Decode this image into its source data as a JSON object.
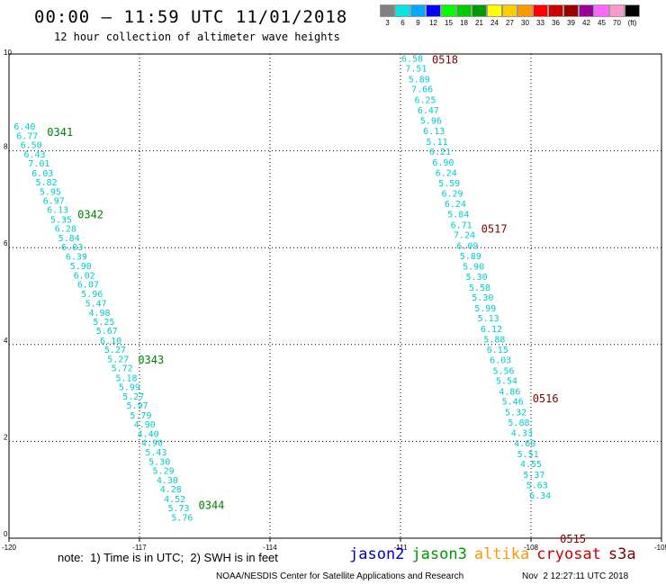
{
  "header": {
    "title": "00:00 – 11:59 UTC 11/01/2018",
    "subtitle": "12 hour collection of altimeter wave heights"
  },
  "colorbar": {
    "colors": [
      "#808080",
      "#00e6e6",
      "#00aaff",
      "#0000ff",
      "#00ff00",
      "#00cc00",
      "#009900",
      "#ffff00",
      "#ffcc00",
      "#ff9900",
      "#ff0000",
      "#cc0000",
      "#990000",
      "#990099",
      "#ff66ff",
      "#ff99cc",
      "#000000"
    ],
    "labels": [
      "3",
      "6",
      "9",
      "12",
      "15",
      "18",
      "21",
      "24",
      "27",
      "30",
      "33",
      "36",
      "39",
      "42",
      "45",
      "70",
      "(ft)"
    ]
  },
  "chart_data": {
    "type": "scatter",
    "title": "00:00 – 11:59 UTC 11/01/2018",
    "subtitle": "12 hour collection of altimeter wave heights",
    "xlim": [
      -120,
      -105
    ],
    "ylim": [
      0,
      10
    ],
    "x_ticks": [
      "-120",
      "-117",
      "-114",
      "-111",
      "-108",
      "-105"
    ],
    "y_ticks": [
      "0",
      "2",
      "4",
      "6",
      "8",
      "10"
    ],
    "grid": true,
    "colors": {
      "jason3": "#008000",
      "cryosat": "#800000",
      "point": "#00cccc"
    },
    "tracks": [
      {
        "satellite": "jason3",
        "times": [
          {
            "label": "0341",
            "lat": 8.4
          },
          {
            "label": "0342",
            "lat": 6.7
          },
          {
            "label": "0343",
            "lat": 3.7
          },
          {
            "label": "0344",
            "lat": 0.7
          }
        ],
        "points": [
          {
            "lon": -119.64,
            "lat": 8.51,
            "swh": 6.4
          },
          {
            "lon": -119.58,
            "lat": 8.32,
            "swh": 6.77
          },
          {
            "lon": -119.49,
            "lat": 8.13,
            "swh": 6.5
          },
          {
            "lon": -119.41,
            "lat": 7.94,
            "swh": 6.43
          },
          {
            "lon": -119.31,
            "lat": 7.75,
            "swh": 7.01
          },
          {
            "lon": -119.23,
            "lat": 7.55,
            "swh": 6.03
          },
          {
            "lon": -119.14,
            "lat": 7.36,
            "swh": 5.82
          },
          {
            "lon": -119.05,
            "lat": 7.17,
            "swh": 5.95
          },
          {
            "lon": -118.97,
            "lat": 6.98,
            "swh": 6.97
          },
          {
            "lon": -118.88,
            "lat": 6.79,
            "swh": 6.13
          },
          {
            "lon": -118.8,
            "lat": 6.59,
            "swh": 5.35
          },
          {
            "lon": -118.7,
            "lat": 6.4,
            "swh": 6.28
          },
          {
            "lon": -118.62,
            "lat": 6.21,
            "swh": 5.84
          },
          {
            "lon": -118.55,
            "lat": 6.02,
            "swh": 6.03
          },
          {
            "lon": -118.45,
            "lat": 5.83,
            "swh": 6.39
          },
          {
            "lon": -118.35,
            "lat": 5.63,
            "swh": 5.9
          },
          {
            "lon": -118.27,
            "lat": 5.44,
            "swh": 6.02
          },
          {
            "lon": -118.18,
            "lat": 5.25,
            "swh": 6.07
          },
          {
            "lon": -118.09,
            "lat": 5.06,
            "swh": 5.96
          },
          {
            "lon": -118.0,
            "lat": 4.86,
            "swh": 5.47
          },
          {
            "lon": -117.92,
            "lat": 4.67,
            "swh": 4.98
          },
          {
            "lon": -117.82,
            "lat": 4.48,
            "swh": 5.25
          },
          {
            "lon": -117.75,
            "lat": 4.29,
            "swh": 5.67
          },
          {
            "lon": -117.66,
            "lat": 4.09,
            "swh": 6.1
          },
          {
            "lon": -117.56,
            "lat": 3.9,
            "swh": 5.27
          },
          {
            "lon": -117.49,
            "lat": 3.71,
            "swh": 5.27
          },
          {
            "lon": -117.4,
            "lat": 3.52,
            "swh": 5.72
          },
          {
            "lon": -117.3,
            "lat": 3.32,
            "swh": 5.18
          },
          {
            "lon": -117.23,
            "lat": 3.13,
            "swh": 5.99
          },
          {
            "lon": -117.14,
            "lat": 2.94,
            "swh": 5.27
          },
          {
            "lon": -117.05,
            "lat": 2.75,
            "swh": 5.97
          },
          {
            "lon": -116.97,
            "lat": 2.55,
            "swh": 5.79
          },
          {
            "lon": -116.88,
            "lat": 2.36,
            "swh": 4.9
          },
          {
            "lon": -116.8,
            "lat": 2.17,
            "swh": 4.4
          },
          {
            "lon": -116.71,
            "lat": 1.98,
            "swh": 4.9
          },
          {
            "lon": -116.62,
            "lat": 1.78,
            "swh": 5.43
          },
          {
            "lon": -116.54,
            "lat": 1.59,
            "swh": 5.3
          },
          {
            "lon": -116.45,
            "lat": 1.4,
            "swh": 5.29
          },
          {
            "lon": -116.36,
            "lat": 1.21,
            "swh": 4.3
          },
          {
            "lon": -116.28,
            "lat": 1.02,
            "swh": 4.28
          },
          {
            "lon": -116.19,
            "lat": 0.82,
            "swh": 4.52
          },
          {
            "lon": -116.1,
            "lat": 0.63,
            "swh": 5.73
          },
          {
            "lon": -116.02,
            "lat": 0.44,
            "swh": 5.76
          }
        ]
      },
      {
        "satellite": "cryosat",
        "times": [
          {
            "label": "0518",
            "lat": 9.9
          },
          {
            "label": "0517",
            "lat": 6.4
          },
          {
            "label": "0516",
            "lat": 2.9
          },
          {
            "label": "0515",
            "lat": 0.0
          }
        ],
        "points": [
          {
            "lon": -110.73,
            "lat": 9.92,
            "swh": 6.58
          },
          {
            "lon": -110.64,
            "lat": 9.71,
            "swh": 7.51
          },
          {
            "lon": -110.57,
            "lat": 9.49,
            "swh": 5.89
          },
          {
            "lon": -110.5,
            "lat": 9.28,
            "swh": 7.66
          },
          {
            "lon": -110.43,
            "lat": 9.06,
            "swh": 6.25
          },
          {
            "lon": -110.36,
            "lat": 8.85,
            "swh": 6.47
          },
          {
            "lon": -110.3,
            "lat": 8.63,
            "swh": 5.96
          },
          {
            "lon": -110.23,
            "lat": 8.42,
            "swh": 6.13
          },
          {
            "lon": -110.16,
            "lat": 8.2,
            "swh": 5.11
          },
          {
            "lon": -110.09,
            "lat": 7.99,
            "swh": 6.21
          },
          {
            "lon": -110.02,
            "lat": 7.77,
            "swh": 6.9
          },
          {
            "lon": -109.95,
            "lat": 7.56,
            "swh": 6.24
          },
          {
            "lon": -109.88,
            "lat": 7.34,
            "swh": 5.59
          },
          {
            "lon": -109.81,
            "lat": 7.13,
            "swh": 6.29
          },
          {
            "lon": -109.74,
            "lat": 6.91,
            "swh": 6.24
          },
          {
            "lon": -109.67,
            "lat": 6.7,
            "swh": 5.84
          },
          {
            "lon": -109.6,
            "lat": 6.48,
            "swh": 6.71
          },
          {
            "lon": -109.53,
            "lat": 6.27,
            "swh": 7.24
          },
          {
            "lon": -109.46,
            "lat": 6.05,
            "swh": 6.09
          },
          {
            "lon": -109.39,
            "lat": 5.84,
            "swh": 5.89
          },
          {
            "lon": -109.32,
            "lat": 5.62,
            "swh": 5.9
          },
          {
            "lon": -109.25,
            "lat": 5.41,
            "swh": 5.3
          },
          {
            "lon": -109.18,
            "lat": 5.19,
            "swh": 5.58
          },
          {
            "lon": -109.11,
            "lat": 4.98,
            "swh": 5.3
          },
          {
            "lon": -109.05,
            "lat": 4.76,
            "swh": 5.99
          },
          {
            "lon": -108.98,
            "lat": 4.55,
            "swh": 5.13
          },
          {
            "lon": -108.91,
            "lat": 4.33,
            "swh": 6.12
          },
          {
            "lon": -108.84,
            "lat": 4.12,
            "swh": 5.88
          },
          {
            "lon": -108.77,
            "lat": 3.9,
            "swh": 6.15
          },
          {
            "lon": -108.7,
            "lat": 3.69,
            "swh": 6.03
          },
          {
            "lon": -108.63,
            "lat": 3.47,
            "swh": 5.56
          },
          {
            "lon": -108.56,
            "lat": 3.26,
            "swh": 5.54
          },
          {
            "lon": -108.49,
            "lat": 3.04,
            "swh": 4.86
          },
          {
            "lon": -108.42,
            "lat": 2.83,
            "swh": 5.46
          },
          {
            "lon": -108.35,
            "lat": 2.61,
            "swh": 5.32
          },
          {
            "lon": -108.28,
            "lat": 2.4,
            "swh": 5.88
          },
          {
            "lon": -108.21,
            "lat": 2.18,
            "swh": 4.33
          },
          {
            "lon": -108.14,
            "lat": 1.97,
            "swh": 4.6
          },
          {
            "lon": -108.07,
            "lat": 1.75,
            "swh": 5.51
          },
          {
            "lon": -108.0,
            "lat": 1.54,
            "swh": 4.55
          },
          {
            "lon": -107.93,
            "lat": 1.32,
            "swh": 5.37
          },
          {
            "lon": -107.86,
            "lat": 1.11,
            "swh": 5.63
          },
          {
            "lon": -107.79,
            "lat": 0.89,
            "swh": 6.34
          }
        ]
      }
    ]
  },
  "footer": {
    "note": "note:  1) Time is in UTC;  2) SWH is in feet",
    "legend": [
      {
        "label": "jason2",
        "color": "#0000cc"
      },
      {
        "label": "jason3",
        "color": "#009900"
      },
      {
        "label": "altika",
        "color": "#ff9900"
      },
      {
        "label": "cryosat",
        "color": "#cc0000"
      },
      {
        "label": "s3a",
        "color": "#800000"
      }
    ],
    "credit": "NOAA/NESDIS Center for Satellite Applications and Research",
    "timestamp": "Nov  2 12:27:11 UTC 2018"
  }
}
